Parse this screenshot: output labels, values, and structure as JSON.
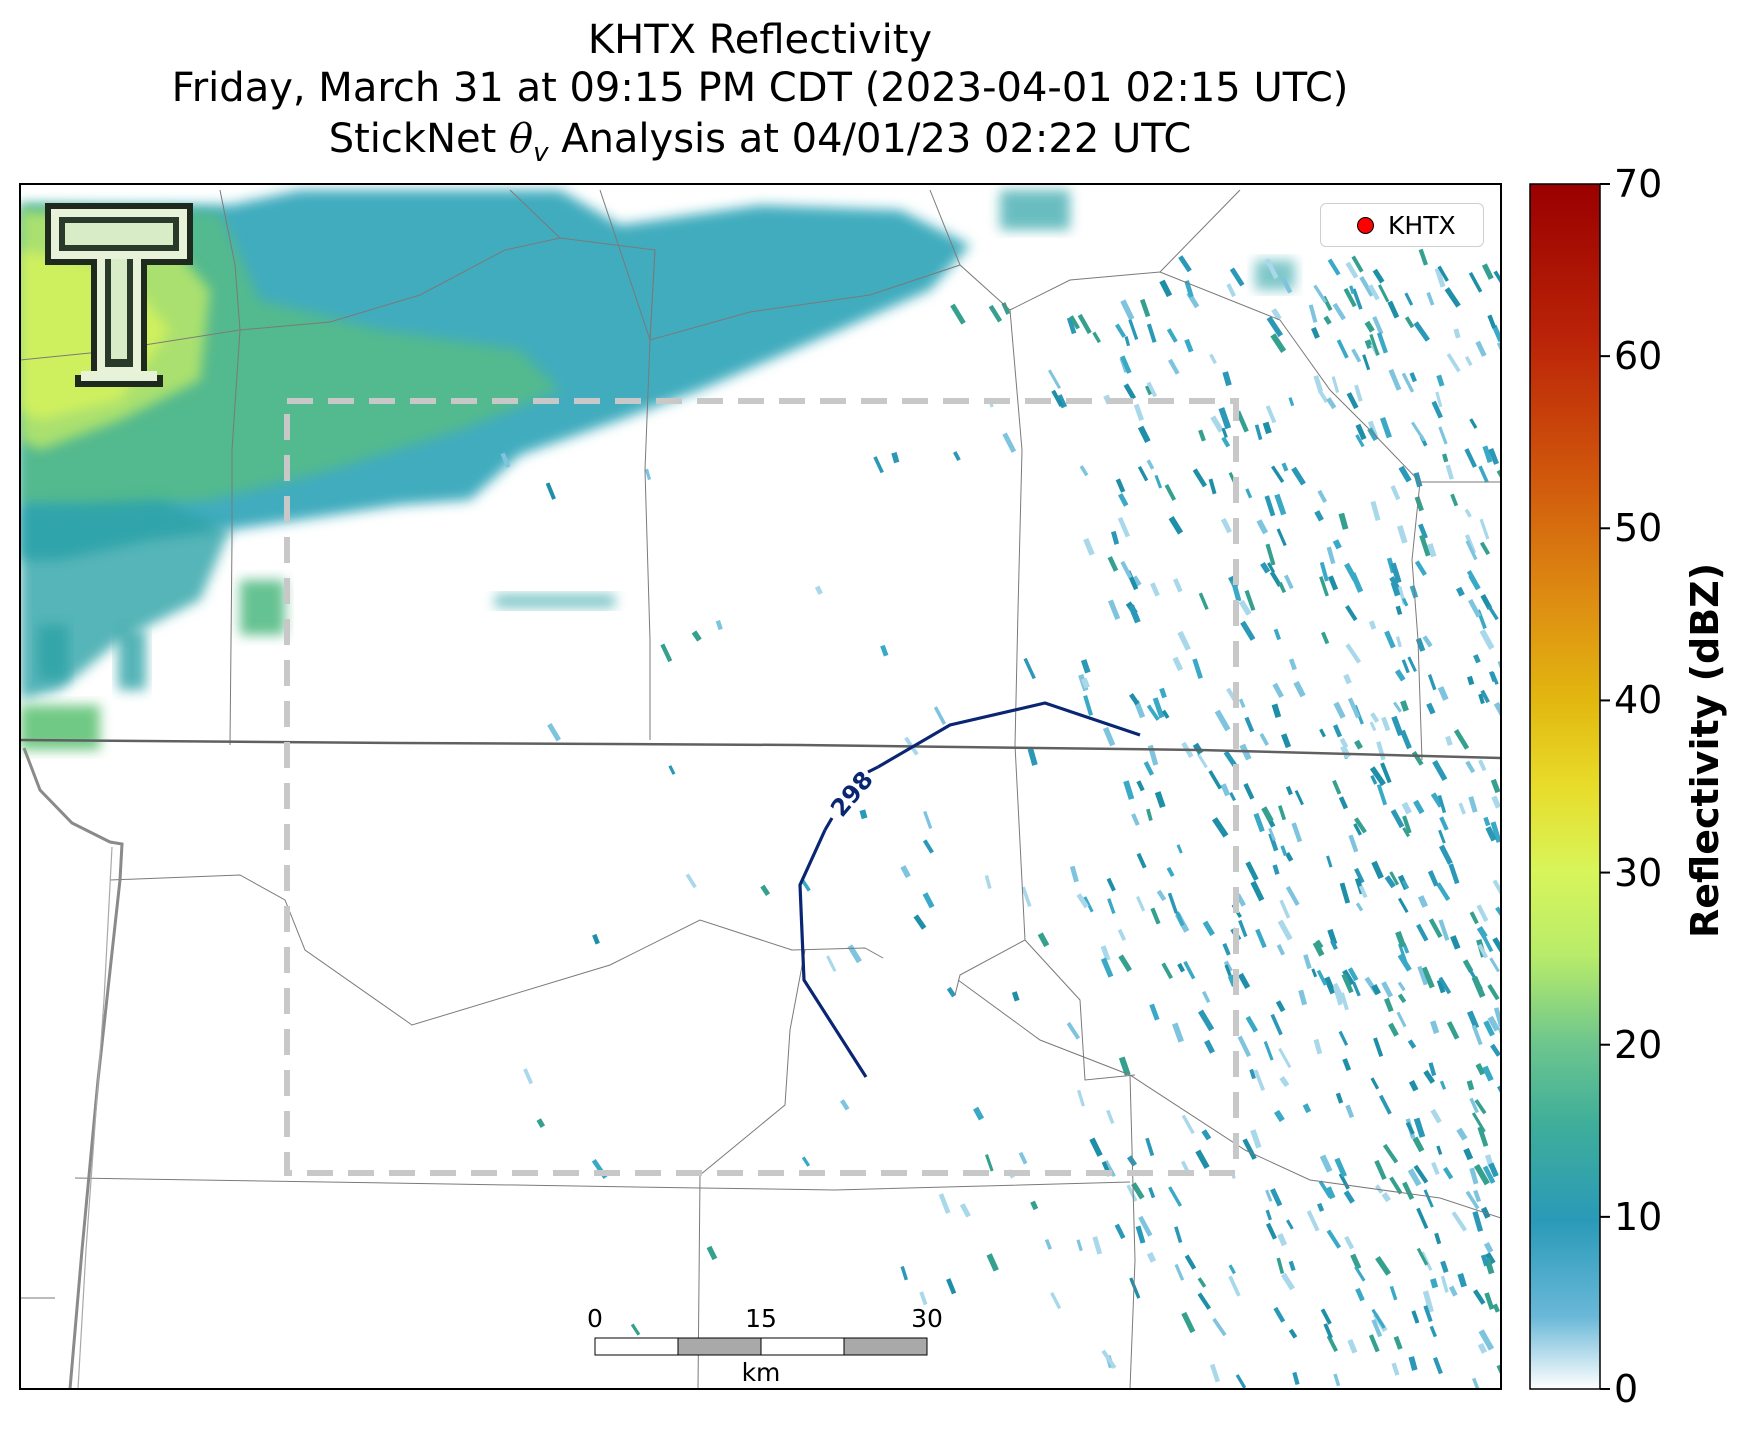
{
  "title": {
    "line1": "KHTX Reflectivity",
    "line2": "Friday, March 31 at 09:15 PM CDT (2023-04-01 02:15 UTC)",
    "line3_prefix": "StickNet ",
    "line3_symbol": "θ",
    "line3_subscript": "v",
    "line3_suffix": " Analysis at 04/01/23 02:22 UTC"
  },
  "legend": {
    "label": "KHTX",
    "marker_color": "#ff0000"
  },
  "contour": {
    "label": "298"
  },
  "colorbar": {
    "label": "Reflectivity (dBZ)",
    "ticks": [
      "0",
      "10",
      "20",
      "30",
      "40",
      "50",
      "60",
      "70"
    ],
    "min": 0,
    "max": 70,
    "colors": [
      "#ffffff",
      "#2a9ab8",
      "#6cc58e",
      "#d8f55a",
      "#e2c21a",
      "#dd7a10",
      "#c2280a",
      "#9a0000"
    ]
  },
  "scale_bar": {
    "ticks": [
      "0",
      "15",
      "30"
    ],
    "unit": "km"
  },
  "logo": {
    "icon": "texas-tech-double-t-logo"
  },
  "chart_data": {
    "type": "heatmap",
    "title": "KHTX Reflectivity",
    "colorbar_label": "Reflectivity (dBZ)",
    "value_range": [
      0,
      70
    ],
    "contour_levels": [
      298
    ],
    "overlays": [
      "county-boundaries",
      "state-boundary",
      "analysis-domain-box",
      "theta-v-contour",
      "scale-bar"
    ]
  }
}
